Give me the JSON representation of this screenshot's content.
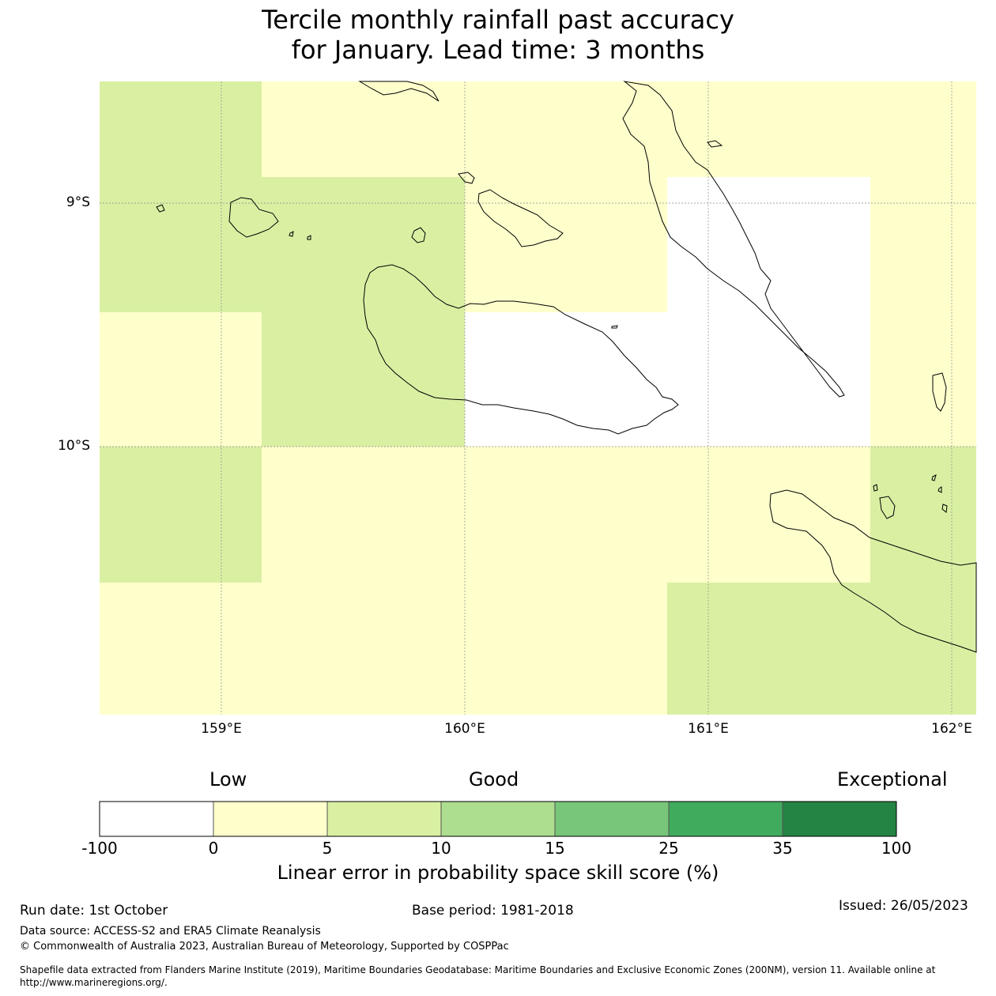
{
  "title": {
    "line1": "Tercile monthly rainfall past accuracy",
    "line2": "for January. Lead time: 3 months"
  },
  "map": {
    "lat_labels": [
      "9°S",
      "10°S"
    ],
    "lon_labels": [
      "159°E",
      "160°E",
      "161°E",
      "162°E"
    ],
    "extent": {
      "lon_min": 158.5,
      "lon_max": 162.1,
      "lat_min": -11.1,
      "lat_max": -8.5
    },
    "grid_values": {
      "cell_size_deg": [
        0.833,
        0.555
      ],
      "note": "skill categories: white <0, yellow 0-5, light green 5-10"
    }
  },
  "colorbar": {
    "categories": [
      "Low",
      "Good",
      "Exceptional"
    ],
    "ticks": [
      "-100",
      "0",
      "5",
      "10",
      "15",
      "25",
      "35",
      "100"
    ],
    "colors": [
      "#ffffff",
      "#ffffcc",
      "#d9f0a3",
      "#addd8e",
      "#78c679",
      "#41ab5d",
      "#238443"
    ],
    "label": "Linear error in probability space skill score (%)"
  },
  "footer": {
    "run_date": "Run date: 1st October",
    "base_period": "Base period: 1981-2018",
    "issued": "Issued: 26/05/2023",
    "data_source": "Data source: ACCESS-S2 and ERA5 Climate Reanalysis",
    "copyright": "© Commonwealth of Australia 2023, Australian Bureau of Meteorology, Supported by COSPPac",
    "shapefile_line1": "Shapefile data extracted from Flanders Marine Institute (2019), Maritime Boundaries Geodatabase: Maritime Boundaries and Exclusive Economic Zones (200NM), version 11. Available online at",
    "shapefile_line2": "http://www.marineregions.org/."
  }
}
